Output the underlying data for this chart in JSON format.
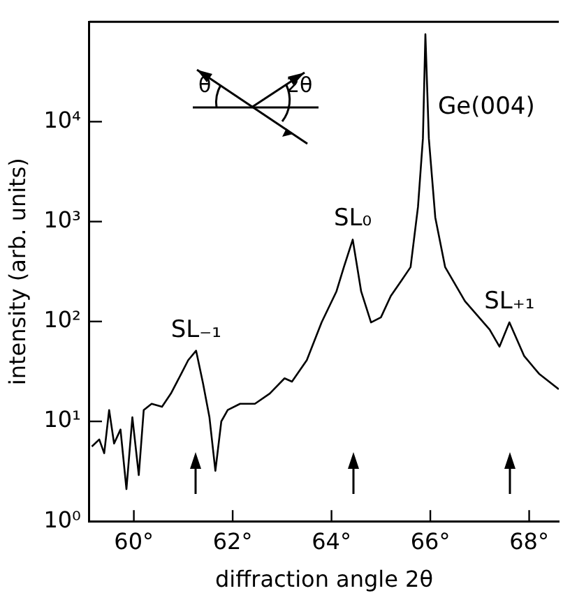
{
  "chart_data": {
    "type": "line",
    "xlabel": "diffraction angle 2θ",
    "ylabel": "intensity (arb. units)",
    "color": "#000000",
    "log": "y",
    "grid": false,
    "legend": false,
    "marker": "none",
    "x": [
      59.15,
      59.3,
      59.4,
      59.5,
      59.6,
      59.73,
      59.85,
      59.97,
      60.1,
      60.2,
      60.36,
      60.57,
      60.75,
      60.96,
      61.1,
      61.26,
      61.4,
      61.53,
      61.65,
      61.77,
      61.9,
      62.15,
      62.45,
      62.75,
      63.05,
      63.2,
      63.5,
      63.8,
      64.1,
      64.25,
      64.43,
      64.6,
      64.8,
      65.0,
      65.2,
      65.4,
      65.6,
      65.75,
      65.85,
      65.9,
      65.97,
      66.1,
      66.3,
      66.7,
      67.2,
      67.4,
      67.6,
      67.9,
      68.2,
      68.6
    ],
    "values": [
      5.6,
      6.6,
      4.8,
      13,
      6,
      8.3,
      2.1,
      11,
      2.9,
      13,
      15,
      14,
      19,
      30,
      41,
      51,
      24,
      11,
      3.2,
      10,
      13,
      15,
      15,
      19,
      27,
      25,
      41,
      98,
      200,
      350,
      660,
      200,
      98,
      110,
      180,
      250,
      350,
      1400,
      6800,
      75000,
      6800,
      1100,
      350,
      160,
      83,
      56,
      98,
      45,
      30,
      21
    ],
    "xlim": [
      59.1,
      68.6
    ],
    "xticks": [
      {
        "value": 60,
        "label": "60°"
      },
      {
        "value": 62,
        "label": "62°"
      },
      {
        "value": 64,
        "label": "64°"
      },
      {
        "value": 66,
        "label": "66°"
      },
      {
        "value": 68,
        "label": "68°"
      }
    ],
    "ylim": [
      1,
      100000
    ],
    "yticks": [
      {
        "value": 1,
        "label": "10⁰"
      },
      {
        "value": 10,
        "label": "10¹"
      },
      {
        "value": 100,
        "label": "10²"
      },
      {
        "value": 1000,
        "label": "10³"
      },
      {
        "value": 10000,
        "label": "10⁴"
      }
    ],
    "annotations": [
      {
        "text": "SL₋₁",
        "x": 61.26,
        "y": 51
      },
      {
        "text": "SL₀",
        "x": 64.43,
        "y": 660
      },
      {
        "text": "SL₊₁",
        "x": 67.6,
        "y": 98
      },
      {
        "text": "Ge(004)",
        "x": 65.9,
        "y": 75000
      },
      "θ",
      "2θ"
    ]
  }
}
